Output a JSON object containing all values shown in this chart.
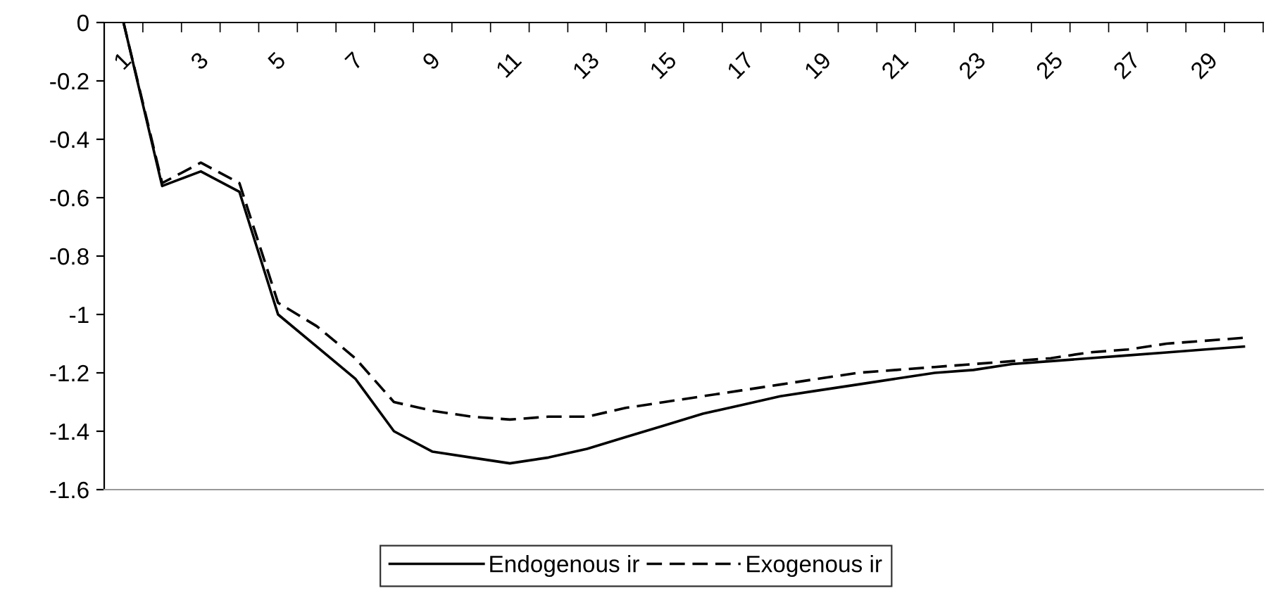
{
  "chart_data": {
    "type": "line",
    "categories": [
      "1",
      null,
      "3",
      null,
      "5",
      null,
      "7",
      null,
      "9",
      null,
      "11",
      null,
      "13",
      null,
      "15",
      null,
      "17",
      null,
      "19",
      null,
      "21",
      null,
      "23",
      null,
      "25",
      null,
      "27",
      null,
      "29",
      null
    ],
    "ylim": [
      -1.6,
      0
    ],
    "yticks": [
      {
        "value": -1.6,
        "label": "-1.6"
      },
      {
        "value": -1.4,
        "label": "-1.4"
      },
      {
        "value": -1.2,
        "label": "-1.2"
      },
      {
        "value": -1,
        "label": "-1"
      },
      {
        "value": -0.8,
        "label": "-0.8"
      },
      {
        "value": -0.6,
        "label": "-0.6"
      },
      {
        "value": -0.4,
        "label": "-0.4"
      },
      {
        "value": -0.2,
        "label": "-0.2"
      },
      {
        "value": 0,
        "label": "0"
      }
    ],
    "grid": false,
    "legend": "bottom",
    "marker": "none",
    "series": [
      {
        "name": "Endogenous ir",
        "color": "#000000",
        "line_style": "solid",
        "values": [
          0,
          -0.56,
          -0.51,
          -0.58,
          -1.0,
          -1.11,
          -1.22,
          -1.4,
          -1.47,
          -1.49,
          -1.51,
          -1.49,
          -1.46,
          -1.42,
          -1.38,
          -1.34,
          -1.31,
          -1.28,
          -1.26,
          -1.24,
          -1.22,
          -1.2,
          -1.19,
          -1.17,
          -1.16,
          -1.15,
          -1.14,
          -1.13,
          -1.12,
          -1.11
        ]
      },
      {
        "name": "Exogenous ir",
        "color": "#000000",
        "line_style": "dashed",
        "values": [
          0,
          -0.55,
          -0.48,
          -0.55,
          -0.96,
          -1.04,
          -1.15,
          -1.3,
          -1.33,
          -1.35,
          -1.36,
          -1.35,
          -1.35,
          -1.32,
          -1.3,
          -1.28,
          -1.26,
          -1.24,
          -1.22,
          -1.2,
          -1.19,
          -1.18,
          -1.17,
          -1.16,
          -1.15,
          -1.13,
          -1.12,
          -1.1,
          -1.09,
          -1.08
        ]
      }
    ]
  }
}
